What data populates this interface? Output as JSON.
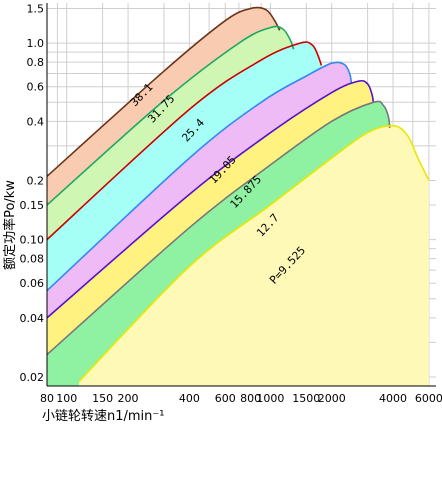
{
  "chart_data": {
    "type": "area",
    "xlabel": "小链轮转速n1/min⁻¹",
    "ylabel": "额定功率Po/kw",
    "x_scale": "log",
    "y_scale": "log",
    "xlim": [
      80,
      6500
    ],
    "ylim": [
      0.018,
      1.6
    ],
    "grid": true,
    "x_ticks": [
      {
        "value": 80,
        "label": "80"
      },
      {
        "value": 100,
        "label": "100"
      },
      {
        "value": 150,
        "label": "150"
      },
      {
        "value": 200,
        "label": "200"
      },
      {
        "value": 400,
        "label": "400"
      },
      {
        "value": 600,
        "label": "600"
      },
      {
        "value": 800,
        "label": "800"
      },
      {
        "value": 1000,
        "label": "1000"
      },
      {
        "value": 1500,
        "label": "1500"
      },
      {
        "value": 2000,
        "label": "2000"
      },
      {
        "value": 4000,
        "label": "4000"
      },
      {
        "value": 6000,
        "label": "6000"
      }
    ],
    "y_ticks": [
      {
        "value": 0.02,
        "label": "0.02"
      },
      {
        "value": 0.04,
        "label": "0.04"
      },
      {
        "value": 0.06,
        "label": "0.06"
      },
      {
        "value": 0.08,
        "label": "0.08"
      },
      {
        "value": 0.1,
        "label": "0.10"
      },
      {
        "value": 0.15,
        "label": "0.15"
      },
      {
        "value": 0.2,
        "label": "0.2"
      },
      {
        "value": 0.4,
        "label": "0.4"
      },
      {
        "value": 0.6,
        "label": "0.6"
      },
      {
        "value": 0.8,
        "label": "0.8"
      },
      {
        "value": 1.0,
        "label": "1.0"
      },
      {
        "value": 1.5,
        "label": "1.5"
      }
    ],
    "series": [
      {
        "name": "38.1",
        "fill": "#f9ccb1",
        "stroke": "#6b3418",
        "label_at": [
          240,
          0.53
        ],
        "points": [
          [
            80,
            0.21
          ],
          [
            300,
            0.72
          ],
          [
            600,
            1.3
          ],
          [
            800,
            1.5
          ],
          [
            950,
            1.48
          ],
          [
            1050,
            1.3
          ],
          [
            1110,
            1.16
          ]
        ]
      },
      {
        "name": "31.75",
        "fill": "#cff7b3",
        "stroke": "#1aa862",
        "label_at": [
          300,
          0.45
        ],
        "points": [
          [
            80,
            0.15
          ],
          [
            300,
            0.51
          ],
          [
            700,
            1.0
          ],
          [
            1000,
            1.2
          ],
          [
            1150,
            1.18
          ],
          [
            1250,
            1.04
          ],
          [
            1300,
            0.93
          ]
        ]
      },
      {
        "name": "25.4",
        "fill": "#a6fff7",
        "stroke": "#cc0000",
        "label_at": [
          430,
          0.35
        ],
        "points": [
          [
            80,
            0.1
          ],
          [
            400,
            0.46
          ],
          [
            900,
            0.82
          ],
          [
            1400,
            1.0
          ],
          [
            1600,
            0.98
          ],
          [
            1700,
            0.88
          ],
          [
            1780,
            0.77
          ]
        ]
      },
      {
        "name": "19.05",
        "fill": "#eebbf7",
        "stroke": "#3388ee",
        "label_at": [
          600,
          0.22
        ],
        "points": [
          [
            80,
            0.055
          ],
          [
            400,
            0.26
          ],
          [
            900,
            0.5
          ],
          [
            1500,
            0.68
          ],
          [
            2000,
            0.79
          ],
          [
            2300,
            0.78
          ],
          [
            2450,
            0.7
          ],
          [
            2500,
            0.62
          ]
        ]
      },
      {
        "name": "15.875",
        "fill": "#fff280",
        "stroke": "#5511cc",
        "label_at": [
          780,
          0.17
        ],
        "points": [
          [
            80,
            0.04
          ],
          [
            400,
            0.17
          ],
          [
            1000,
            0.35
          ],
          [
            2000,
            0.56
          ],
          [
            2700,
            0.64
          ],
          [
            3000,
            0.62
          ],
          [
            3150,
            0.55
          ],
          [
            3200,
            0.5
          ]
        ]
      },
      {
        "name": "12.7",
        "fill": "#8ff2a3",
        "stroke": "#777777",
        "label_at": [
          1000,
          0.115
        ],
        "points": [
          [
            80,
            0.026
          ],
          [
            400,
            0.115
          ],
          [
            1000,
            0.24
          ],
          [
            2000,
            0.4
          ],
          [
            3200,
            0.5
          ],
          [
            3600,
            0.48
          ],
          [
            3800,
            0.42
          ],
          [
            3850,
            0.37
          ]
        ]
      },
      {
        "name": "P=9.525",
        "fill": "#fff9b8",
        "stroke": "#e8e800",
        "label_at": [
          1250,
          0.072
        ],
        "points": [
          [
            115,
            0.019
          ],
          [
            400,
            0.073
          ],
          [
            1000,
            0.15
          ],
          [
            2000,
            0.26
          ],
          [
            3000,
            0.35
          ],
          [
            4000,
            0.38
          ],
          [
            4700,
            0.34
          ],
          [
            5300,
            0.26
          ],
          [
            6000,
            0.2
          ]
        ]
      }
    ]
  }
}
